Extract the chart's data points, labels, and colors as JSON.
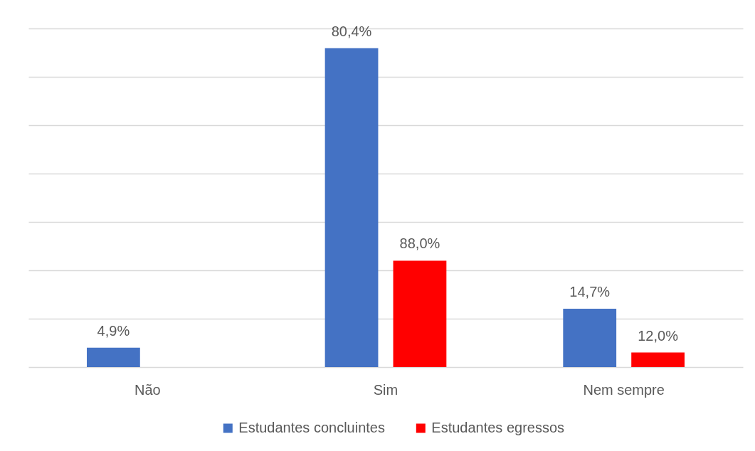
{
  "chart_data": {
    "type": "bar",
    "categories": [
      "Não",
      "Sim",
      "Nem sempre"
    ],
    "series": [
      {
        "name": "Estudantes concluintes",
        "color": "#4472c4",
        "values": [
          4.9,
          80.4,
          14.7
        ],
        "value_labels": [
          "4,9%",
          "80,4%",
          "14,7%"
        ]
      },
      {
        "name": "Estudantes egressos",
        "color": "#ff0000",
        "axis": "y2",
        "values": [
          null,
          88.0,
          12.0
        ],
        "value_labels": [
          null,
          "88,0%",
          "12,0%"
        ]
      }
    ],
    "ylim": [
      0,
      85.4
    ],
    "yticks": [
      {
        "value": 0,
        "label": null
      },
      {
        "value": 12.2,
        "label": null
      },
      {
        "value": 24.4,
        "label": null
      },
      {
        "value": 36.6,
        "label": null
      },
      {
        "value": 48.8,
        "label": null
      },
      {
        "value": 61.0,
        "label": null
      },
      {
        "value": 73.2,
        "label": null
      },
      {
        "value": 85.4,
        "label": null
      }
    ],
    "y2lim": [
      0,
      280
    ],
    "grid": "y",
    "legend": "bottom",
    "tick_labels": "x"
  }
}
